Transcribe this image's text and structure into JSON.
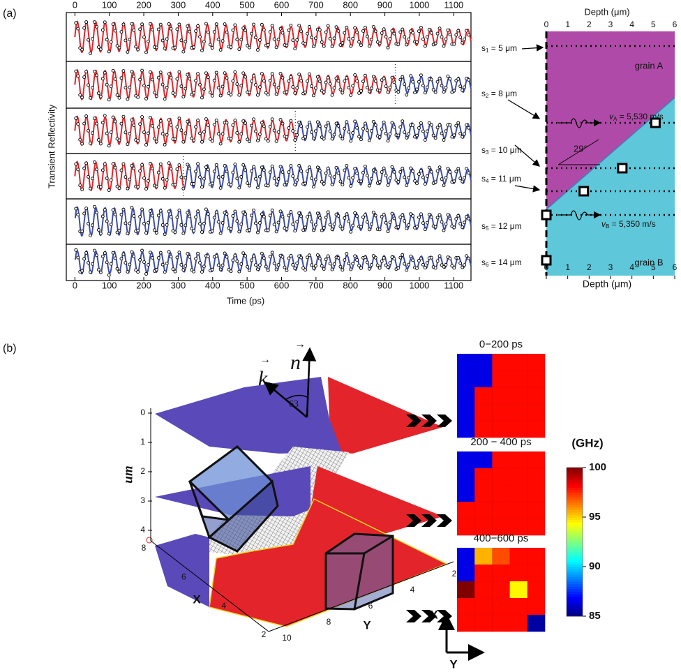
{
  "panel_a": {
    "label": "(a)",
    "time_plot": {
      "xlabel": "Time (ps)",
      "ylabel": "Transient Reflectivity",
      "xlim": [
        -25,
        1150
      ],
      "xticks": [
        0,
        100,
        200,
        300,
        400,
        500,
        600,
        700,
        800,
        900,
        1000,
        1100
      ],
      "period_ps": 27,
      "early_color": "#e3262b",
      "late_color": "#3f4fa8",
      "switch_ps": [
        null,
        930,
        640,
        315,
        0,
        0
      ]
    },
    "depth_plot": {
      "xlabel": "Depth (μm)",
      "xlim": [
        0,
        6
      ],
      "xticks": [
        0,
        1,
        2,
        3,
        4,
        5,
        6
      ],
      "grain_a": "grain A",
      "grain_b": "grain B",
      "angle": "29°",
      "va": {
        "symbol": "v",
        "sub": "A",
        "text": " = 5,530 m/s"
      },
      "vb": {
        "symbol": "v",
        "sub": "B",
        "text": " = 5,350 m/s"
      },
      "sources": [
        {
          "symbol": "s",
          "sub": "1",
          "text": " = 5  μm",
          "boundary_um": null
        },
        {
          "symbol": "s",
          "sub": "2",
          "text": " = 8  μm",
          "boundary_um": 5.1
        },
        {
          "symbol": "s",
          "sub": "3",
          "text": " = 10  μm",
          "boundary_um": 3.55
        },
        {
          "symbol": "s",
          "sub": "4",
          "text": " = 11  μm",
          "boundary_um": 1.75
        },
        {
          "symbol": "s",
          "sub": "5",
          "text": " = 12  μm",
          "boundary_um": 0
        },
        {
          "symbol": "s",
          "sub": "6",
          "text": " = 14  μm",
          "boundary_um": 0
        }
      ]
    }
  },
  "panel_b": {
    "label": "(b)",
    "z_label": "um",
    "z_ticks": [
      0,
      1,
      2,
      3,
      4
    ],
    "x_label": "X",
    "x_ticks": [
      8,
      6,
      4,
      2
    ],
    "y_label": "Y",
    "y_ticks": [
      10,
      8,
      6,
      4,
      2
    ],
    "k": "k",
    "n": "n",
    "angle": "63",
    "maps": [
      {
        "title": "0−200 ps",
        "values": [
          [
            86.5,
            86.5,
            98,
            98,
            98
          ],
          [
            86.5,
            86.5,
            98,
            98,
            98
          ],
          [
            86.5,
            98,
            98,
            98,
            98
          ],
          [
            86.5,
            98,
            98,
            98,
            98
          ],
          [
            86.5,
            98,
            98,
            98,
            98
          ]
        ]
      },
      {
        "title": "200 − 400 ps",
        "values": [
          [
            86.5,
            86.5,
            98,
            98,
            98
          ],
          [
            86.5,
            98,
            98,
            98,
            98
          ],
          [
            86.5,
            98,
            98,
            98,
            98
          ],
          [
            98,
            98,
            98,
            98,
            98
          ],
          [
            98,
            98,
            98,
            98,
            98
          ]
        ]
      },
      {
        "title": "400−600 ps",
        "values": [
          [
            86.5,
            95.5,
            97,
            98,
            98
          ],
          [
            86.5,
            98,
            98,
            98,
            98
          ],
          [
            100,
            98,
            98,
            94.5,
            98
          ],
          [
            98,
            98,
            98,
            98,
            98
          ],
          [
            98,
            98,
            98,
            98,
            85.5
          ]
        ]
      }
    ],
    "colorbar": {
      "label": "(GHz)",
      "lim": [
        85,
        100
      ],
      "ticks": [
        85,
        90,
        95,
        100
      ]
    },
    "axes_x": "X",
    "axes_y": "Y"
  }
}
